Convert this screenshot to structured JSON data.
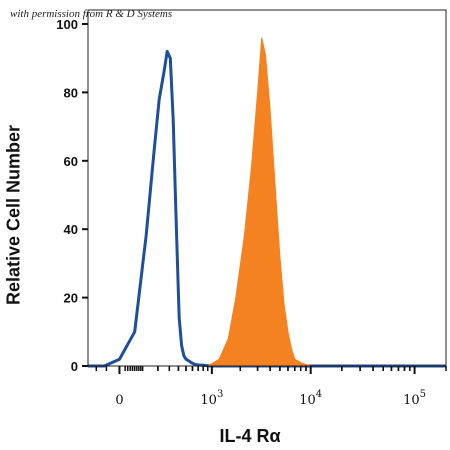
{
  "watermark": "with permission from R & D Systems",
  "chart_data": {
    "type": "area",
    "title": "",
    "xlabel": "IL-4 Rα",
    "ylabel": "Relative Cell Number",
    "xscale": "biexponential",
    "xlim": [
      -150,
      200000
    ],
    "ylim": [
      0,
      100
    ],
    "x_ticks": [
      {
        "value": 0,
        "label": "0"
      },
      {
        "value": 1000,
        "label": "10",
        "exp": "3"
      },
      {
        "value": 10000,
        "label": "10",
        "exp": "4"
      },
      {
        "value": 100000,
        "label": "10",
        "exp": "5"
      }
    ],
    "y_ticks": [
      0,
      20,
      40,
      60,
      80,
      100
    ],
    "grid": false,
    "legend": "none",
    "series": [
      {
        "style": "outline",
        "color": "#1f4e9b",
        "x": [
          -150,
          -60,
          0,
          60,
          120,
          170,
          210,
          250,
          280,
          310,
          340,
          370,
          395,
          410,
          440,
          470,
          500,
          540,
          580,
          640,
          700,
          800,
          900,
          1000,
          2000,
          10000,
          100000,
          200000
        ],
        "y": [
          0,
          0,
          2,
          10,
          38,
          62,
          78,
          86,
          92,
          90,
          72,
          45,
          25,
          14,
          6,
          3,
          2,
          1.5,
          1,
          0.5,
          0.3,
          0.2,
          0.1,
          0,
          0,
          0,
          0,
          0
        ]
      },
      {
        "style": "filled",
        "color": "#f58220",
        "x": [
          -150,
          500,
          900,
          1200,
          1500,
          1800,
          2200,
          2600,
          3000,
          3300,
          3600,
          4000,
          4500,
          5000,
          5500,
          6000,
          6500,
          7000,
          8000,
          10000,
          100000,
          200000
        ],
        "y": [
          0,
          0,
          0,
          2,
          8,
          20,
          38,
          58,
          80,
          96,
          91,
          75,
          52,
          32,
          18,
          10,
          5,
          2,
          1,
          0,
          0,
          0
        ]
      }
    ]
  }
}
